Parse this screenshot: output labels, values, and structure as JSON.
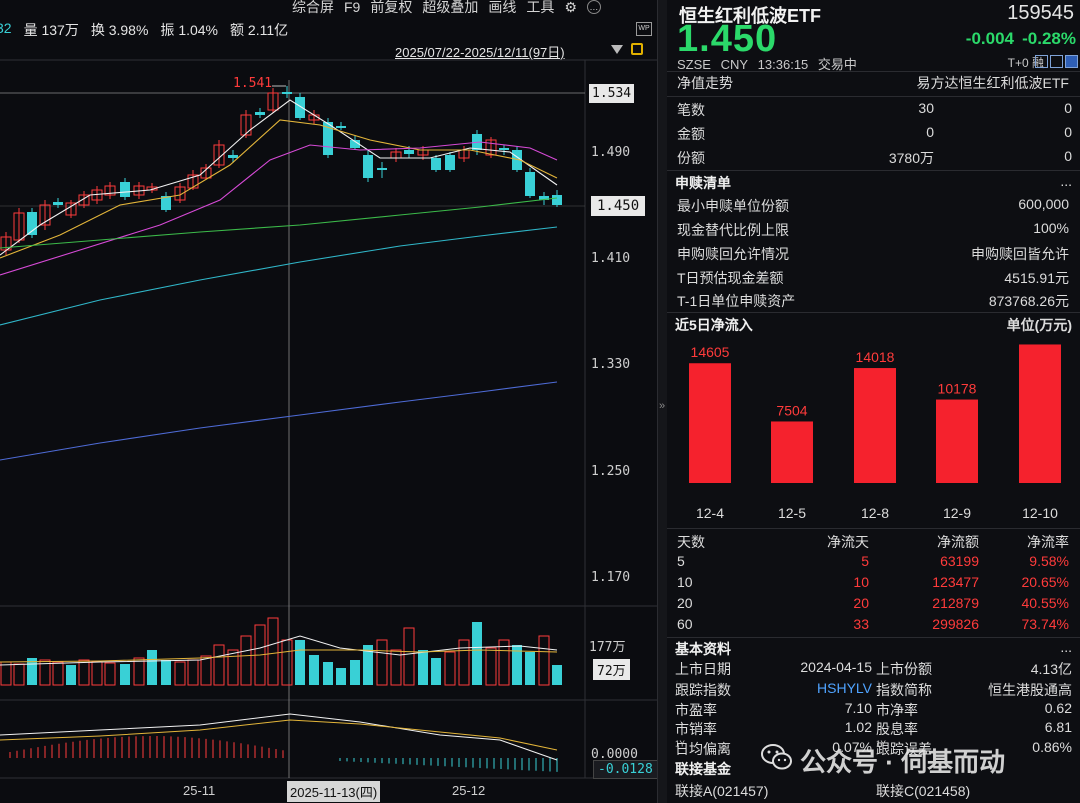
{
  "top_stats": {
    "partial": "32",
    "volume_label": "量",
    "volume": "137万",
    "turnover_label": "换",
    "turnover": "3.98%",
    "amplitude_label": "振",
    "amplitude": "1.04%",
    "amount_label": "额",
    "amount": "2.11亿"
  },
  "menu": [
    "综合屏",
    "F9",
    "前复权",
    "超级叠加",
    "画线",
    "工具"
  ],
  "date_range": "2025/07/22-2025/12/11(97日)",
  "wp_label": "WP",
  "chart": {
    "high_marker": "1.541",
    "price_axis": [
      "1.534",
      "1.490",
      "1.450",
      "1.410",
      "1.330",
      "1.250",
      "1.170"
    ],
    "current_price_tag": "1.450",
    "volume_axis": "177万",
    "volume_tag": "72万",
    "macd_axis": "0.0000",
    "macd_tag": "-0.0128",
    "date_labels": [
      "25-11",
      "25-12"
    ],
    "cursor_date": "2025-11-13(四)"
  },
  "etf": {
    "title": "恒生红利低波ETF",
    "code": "159545",
    "price": "1.450",
    "change": "-0.004",
    "change_pct": "-0.28%",
    "meta": [
      "SZSE",
      "CNY",
      "13:36:15",
      "交易中"
    ],
    "t0": "T+0 融",
    "nav_label": "净值走势",
    "fund_name": "易方达恒生红利低波ETF",
    "rows": [
      {
        "k": "笔数",
        "a": "30",
        "b": "0"
      },
      {
        "k": "金额",
        "a": "0",
        "b": "0"
      },
      {
        "k": "份额",
        "a": "3780万",
        "b": "0"
      }
    ]
  },
  "redemption": {
    "title": "申赎清单",
    "more": "...",
    "items": [
      {
        "k": "最小申赎单位份额",
        "v": "600,000"
      },
      {
        "k": "现金替代比例上限",
        "v": "100%"
      },
      {
        "k": "申购赎回允许情况",
        "v": "申购赎回皆允许"
      },
      {
        "k": "T日预估现金差额",
        "v": "4515.91元"
      },
      {
        "k": "T-1日单位申赎资产",
        "v": "873768.26元"
      }
    ]
  },
  "net_flow": {
    "title": "近5日净流入",
    "unit": "单位(万元)",
    "header": [
      "天数",
      "净流天",
      "净流额",
      "净流率"
    ],
    "rows": [
      [
        "5",
        "5",
        "63199",
        "9.58%"
      ],
      [
        "10",
        "10",
        "123477",
        "20.65%"
      ],
      [
        "20",
        "20",
        "212879",
        "40.55%"
      ],
      [
        "60",
        "33",
        "299826",
        "73.74%"
      ]
    ]
  },
  "chart_data": {
    "type": "bar",
    "title": "近5日净流入",
    "categories": [
      "12-4",
      "12-5",
      "12-8",
      "12-9",
      "12-10"
    ],
    "values": [
      14605,
      7504,
      14018,
      10178,
      16894
    ],
    "ylabel": "单位(万元)",
    "colors": {
      "bar": "#f5222d"
    }
  },
  "basics": {
    "title": "基本资料",
    "more": "...",
    "rows": [
      [
        "上市日期",
        "2024-04-15",
        "上市份额",
        "4.13亿"
      ],
      [
        "跟踪指数",
        "HSHYLV",
        "指数简称",
        "恒生港股通高"
      ],
      [
        "市盈率",
        "7.10",
        "市净率",
        "0.62"
      ],
      [
        "市销率",
        "1.02",
        "股息率",
        "6.81"
      ],
      [
        "日均偏离",
        "0.07%",
        "跟踪误差",
        "0.86%"
      ]
    ],
    "sup": "1Y"
  },
  "linked": {
    "title": "联接基金",
    "a": "联接A(021457)",
    "c": "联接C(021458)"
  },
  "watermark": "公众号 · 伺基而动",
  "colors": {
    "up": "#ff3b3b",
    "down": "#39d0d6",
    "green": "#2bd96a"
  }
}
